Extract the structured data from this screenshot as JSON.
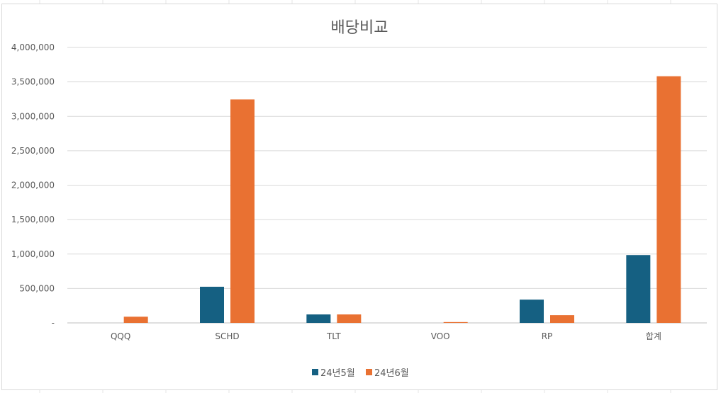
{
  "chart_data": {
    "type": "bar",
    "title": "배당비교",
    "categories": [
      "QQQ",
      "SCHD",
      "TLT",
      "VOO",
      "RP",
      "합계"
    ],
    "series": [
      {
        "name": "24년5월",
        "color": "#156082",
        "values": [
          0,
          525000,
          123000,
          0,
          338000,
          985000
        ]
      },
      {
        "name": "24년6월",
        "color": "#E97132",
        "values": [
          90000,
          3245000,
          123000,
          12000,
          112000,
          3582000
        ]
      }
    ],
    "ylim": [
      0,
      4000000
    ],
    "y_ticks": [
      "-",
      "500,000",
      "1,000,000",
      "1,500,000",
      "2,000,000",
      "2,500,000",
      "3,000,000",
      "3,500,000",
      "4,000,000"
    ],
    "grid": true,
    "legend_position": "bottom"
  }
}
